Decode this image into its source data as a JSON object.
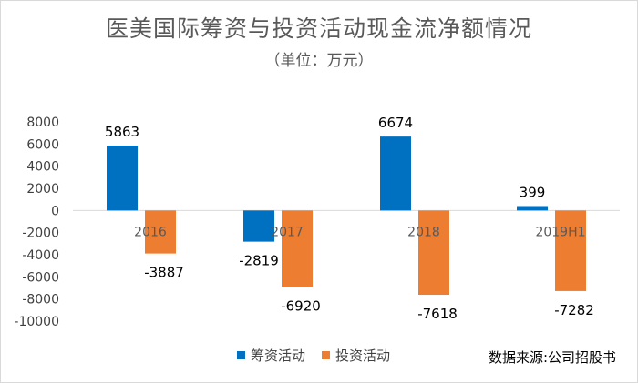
{
  "chart_data": {
    "type": "bar",
    "title": "医美国际筹资与投资活动现金流净额情况",
    "subtitle": "（单位：万元）",
    "categories": [
      "2016",
      "2017",
      "2018",
      "2019H1"
    ],
    "series": [
      {
        "name": "筹资活动",
        "values": [
          5863,
          -2819,
          6674,
          399
        ],
        "color": "#0070c0"
      },
      {
        "name": "投资活动",
        "values": [
          -3887,
          -6920,
          -7618,
          -7282
        ],
        "color": "#ed7d31"
      }
    ],
    "ylim": [
      -10000,
      8000
    ],
    "yticks": [
      "8000",
      "6000",
      "4000",
      "2000",
      "0",
      "-2000",
      "-4000",
      "-6000",
      "-8000",
      "-10000"
    ],
    "grid": false,
    "legend_position": "bottom"
  },
  "source_text": "数据来源:公司招股书"
}
